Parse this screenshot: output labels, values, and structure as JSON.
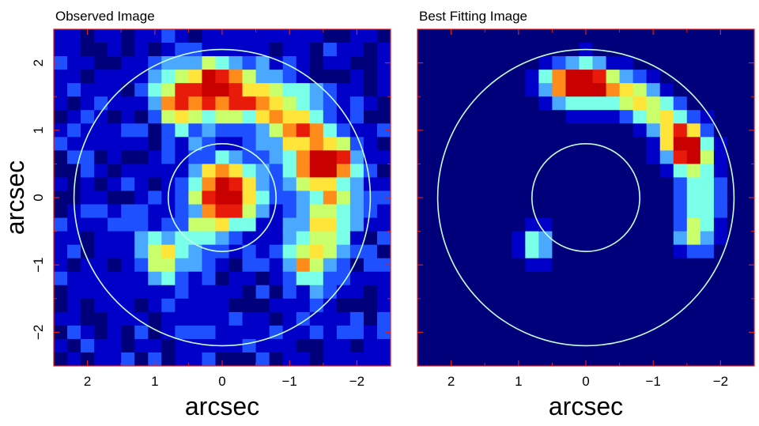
{
  "figure": {
    "ylabel": "arcsec",
    "colormap": [
      "#00007a",
      "#0000c8",
      "#1e50ff",
      "#4aa8ff",
      "#7affe8",
      "#c8ff6a",
      "#ffe43a",
      "#ff8c1a",
      "#e81a0a",
      "#c80000"
    ],
    "frame_color": "#e02020",
    "ring_color": "#c8ffe8"
  },
  "chart_data": [
    {
      "type": "heatmap",
      "title": "Observed Image",
      "xlabel": "arcsec",
      "ylabel": "arcsec",
      "xlim": [
        2.5,
        -2.5
      ],
      "ylim": [
        -2.5,
        2.5
      ],
      "xticks": [
        2,
        1,
        0,
        -1,
        -2
      ],
      "xtick_labels": [
        "2",
        "1",
        "0",
        "−1",
        "−2"
      ],
      "yticks": [
        2,
        1,
        0,
        -1,
        -2
      ],
      "ytick_labels": [
        "2",
        "1",
        "0",
        "−1",
        "−2"
      ],
      "grid": false,
      "pixel_scale_arcsec": 0.2,
      "noise": true,
      "rings": [
        {
          "center": [
            0,
            0
          ],
          "radius": 2.2
        },
        {
          "center": [
            0,
            0
          ],
          "radius": 0.8
        }
      ],
      "components": [
        {
          "shape": "arc",
          "center": [
            0,
            0
          ],
          "radius": 1.55,
          "width": 0.3,
          "angle_from": 18,
          "angle_to": 118,
          "peak": 0.62
        },
        {
          "shape": "arc",
          "center": [
            0,
            0
          ],
          "radius": 1.6,
          "width": 0.28,
          "angle_from": -40,
          "angle_to": 18,
          "peak": 0.52
        },
        {
          "shape": "gaussian",
          "center": [
            -0.05,
            0.05
          ],
          "sigma": 0.32,
          "peak": 1.0
        },
        {
          "shape": "gaussian",
          "center": [
            0.15,
            1.7
          ],
          "sigma": 0.22,
          "peak": 0.42
        },
        {
          "shape": "gaussian",
          "center": [
            0.85,
            -0.9
          ],
          "sigma": 0.28,
          "peak": 0.45
        },
        {
          "shape": "gaussian",
          "center": [
            0.3,
            -0.55
          ],
          "sigma": 0.2,
          "peak": 0.25
        }
      ]
    },
    {
      "type": "heatmap",
      "title": "Best Fitting Image",
      "xlabel": "arcsec",
      "ylabel": "",
      "xlim": [
        2.5,
        -2.5
      ],
      "ylim": [
        -2.5,
        2.5
      ],
      "xticks": [
        2,
        1,
        0,
        -1,
        -2
      ],
      "xtick_labels": [
        "2",
        "1",
        "0",
        "−1",
        "−2"
      ],
      "yticks": [
        2,
        1,
        0,
        -1,
        -2
      ],
      "ytick_labels": [],
      "grid": false,
      "pixel_scale_arcsec": 0.2,
      "noise": false,
      "rings": [
        {
          "center": [
            0,
            0
          ],
          "radius": 2.2
        },
        {
          "center": [
            0,
            0
          ],
          "radius": 0.8
        }
      ],
      "components": [
        {
          "shape": "arc",
          "center": [
            0,
            0
          ],
          "radius": 1.65,
          "width": 0.22,
          "angle_from": 25,
          "angle_to": 100,
          "peak": 0.6
        },
        {
          "shape": "arc",
          "center": [
            0,
            0
          ],
          "radius": 1.7,
          "width": 0.22,
          "angle_from": -20,
          "angle_to": 30,
          "peak": 0.5
        },
        {
          "shape": "gaussian",
          "center": [
            0.0,
            1.75
          ],
          "sigma": 0.22,
          "peak": 0.55
        },
        {
          "shape": "gaussian",
          "center": [
            0.55,
            1.7
          ],
          "sigma": 0.22,
          "peak": 0.3
        },
        {
          "shape": "gaussian",
          "center": [
            0.75,
            -0.7
          ],
          "sigma": 0.18,
          "peak": 0.5
        }
      ]
    }
  ]
}
